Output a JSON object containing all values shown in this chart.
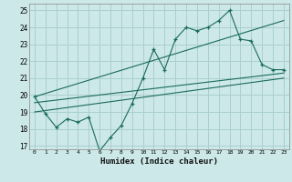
{
  "xlabel": "Humidex (Indice chaleur)",
  "bg_color": "#cce8e8",
  "grid_color": "#aacfcf",
  "line_color": "#1a6b5a",
  "xlim": [
    -0.5,
    23.5
  ],
  "ylim": [
    16.8,
    25.4
  ],
  "yticks": [
    17,
    18,
    19,
    20,
    21,
    22,
    23,
    24,
    25
  ],
  "xticks": [
    0,
    1,
    2,
    3,
    4,
    5,
    6,
    7,
    8,
    9,
    10,
    11,
    12,
    13,
    14,
    15,
    16,
    17,
    18,
    19,
    20,
    21,
    22,
    23
  ],
  "main_series": [
    [
      0,
      19.9
    ],
    [
      1,
      18.9
    ],
    [
      2,
      18.1
    ],
    [
      3,
      18.6
    ],
    [
      4,
      18.4
    ],
    [
      5,
      18.7
    ],
    [
      6,
      16.7
    ],
    [
      7,
      17.5
    ],
    [
      8,
      18.2
    ],
    [
      9,
      19.5
    ],
    [
      10,
      21.0
    ],
    [
      11,
      22.7
    ],
    [
      12,
      21.5
    ],
    [
      13,
      23.3
    ],
    [
      14,
      24.0
    ],
    [
      15,
      23.8
    ],
    [
      16,
      24.0
    ],
    [
      17,
      24.4
    ],
    [
      18,
      25.0
    ],
    [
      19,
      23.3
    ],
    [
      20,
      23.2
    ],
    [
      21,
      21.8
    ],
    [
      22,
      21.5
    ],
    [
      23,
      21.5
    ]
  ],
  "linear1": [
    [
      0,
      19.55
    ],
    [
      23,
      21.3
    ]
  ],
  "linear2": [
    [
      0,
      19.9
    ],
    [
      23,
      24.4
    ]
  ],
  "linear3": [
    [
      0,
      19.0
    ],
    [
      23,
      21.0
    ]
  ]
}
